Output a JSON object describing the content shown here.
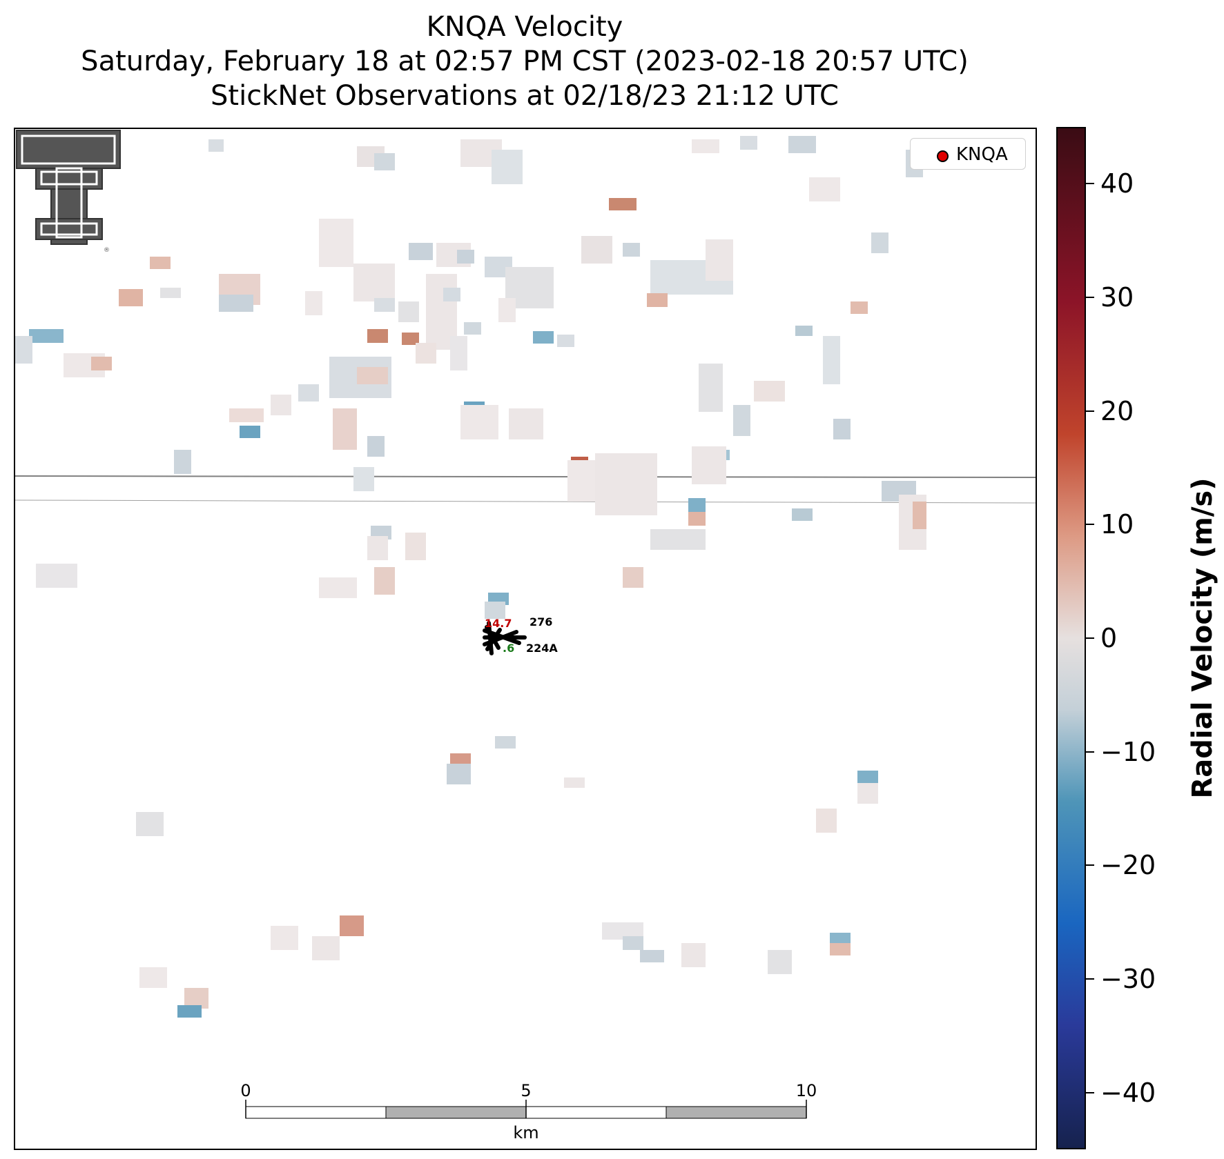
{
  "title": {
    "line1": "KNQA Velocity",
    "line2": "Saturday, February 18 at 02:57 PM CST (2023-02-18 20:57 UTC)",
    "line3": "StickNet Observations at 02/18/23 21:12 UTC"
  },
  "legend": {
    "label": "KNQA"
  },
  "colorbar": {
    "label": "Radial Velocity (m/s)",
    "range": [
      -45,
      45
    ],
    "ticks": [
      "40",
      "30",
      "20",
      "10",
      "0",
      "−10",
      "−20",
      "−30",
      "−40"
    ]
  },
  "scalebar": {
    "labels": [
      "0",
      "5",
      "10"
    ],
    "unit": "km"
  },
  "stations": [
    {
      "id": "276",
      "temperature": "14.7"
    },
    {
      "id": "224A",
      "dewpoint": ".6"
    }
  ],
  "logo": {
    "name": "texas-tech-double-t-logo",
    "mark": "®"
  },
  "colors": {
    "positive": "#c0442c",
    "negative": "#4f95b8",
    "neutral": "#e6e0df",
    "temperature_text": "#c00000",
    "dewpoint_text": "#1a7a1a"
  }
}
